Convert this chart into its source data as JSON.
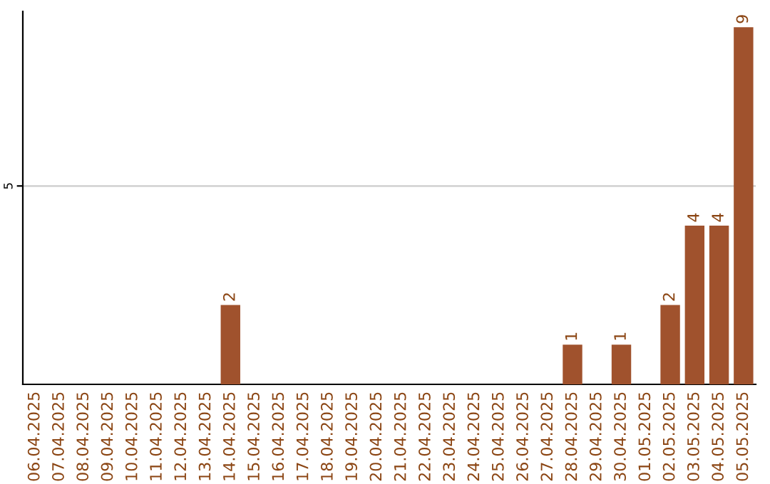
{
  "chart_data": {
    "type": "bar",
    "categories": [
      "06.04.2025",
      "07.04.2025",
      "08.04.2025",
      "09.04.2025",
      "10.04.2025",
      "11.04.2025",
      "12.04.2025",
      "13.04.2025",
      "14.04.2025",
      "15.04.2025",
      "16.04.2025",
      "17.04.2025",
      "18.04.2025",
      "19.04.2025",
      "20.04.2025",
      "21.04.2025",
      "22.04.2025",
      "23.04.2025",
      "24.04.2025",
      "25.04.2025",
      "26.04.2025",
      "27.04.2025",
      "28.04.2025",
      "29.04.2025",
      "30.04.2025",
      "01.05.2025",
      "02.05.2025",
      "03.05.2025",
      "04.05.2025",
      "05.05.2025"
    ],
    "values": [
      0,
      0,
      0,
      0,
      0,
      0,
      0,
      0,
      2,
      0,
      0,
      0,
      0,
      0,
      0,
      0,
      0,
      0,
      0,
      0,
      0,
      0,
      1,
      0,
      1,
      0,
      2,
      4,
      4,
      9
    ],
    "value_labels": [
      null,
      null,
      null,
      null,
      null,
      null,
      null,
      null,
      "2",
      null,
      null,
      null,
      null,
      null,
      null,
      null,
      null,
      null,
      null,
      null,
      null,
      null,
      "1",
      null,
      "1",
      null,
      "2",
      "4",
      "4",
      "9"
    ],
    "color": "#a0522d",
    "ylim": [
      0,
      9.4
    ],
    "yticks": [
      5
    ],
    "grid": "y"
  }
}
